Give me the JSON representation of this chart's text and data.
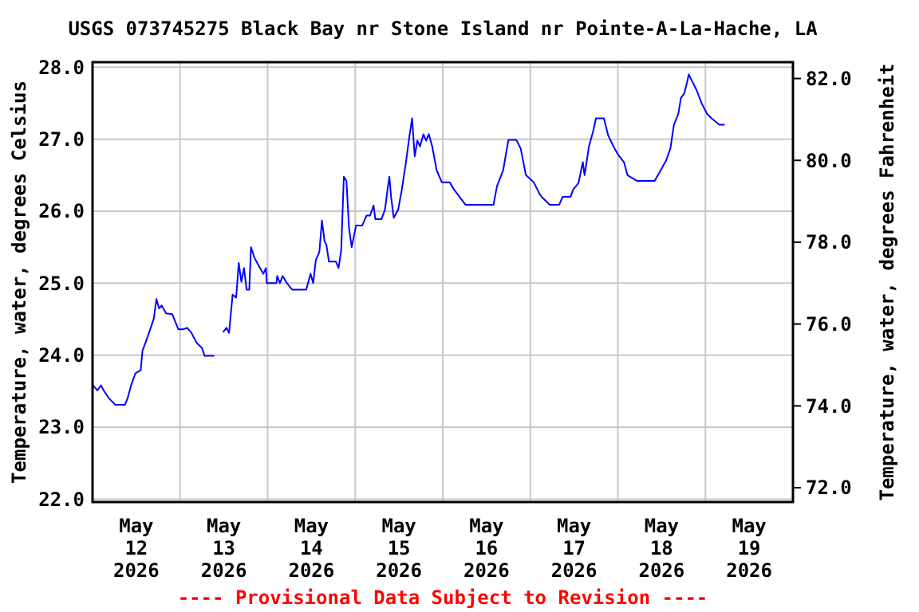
{
  "chart_data": {
    "type": "line",
    "title": "USGS 073745275 Black Bay nr Stone Island nr Pointe-A-La-Hache, LA",
    "ylabel": "Temperature, water, degrees Celsius",
    "y2label": "Temperature, water, degrees Fahrenheit",
    "annotations": [
      "---- Provisional Data Subject to Revision ----"
    ],
    "x": [
      "2026-05-12T00:07",
      "2026-05-12T01:19",
      "2026-05-12T02:20",
      "2026-05-12T03:03",
      "2026-05-12T04:31",
      "2026-05-12T06:14",
      "2026-05-12T08:53",
      "2026-05-12T09:36",
      "2026-05-12T10:34",
      "2026-05-12T11:46",
      "2026-05-12T13:12",
      "2026-05-12T13:41",
      "2026-05-12T14:38",
      "2026-05-12T16:05",
      "2026-05-12T16:48",
      "2026-05-12T17:31",
      "2026-05-12T18:14",
      "2026-05-12T18:58",
      "2026-05-12T20:10",
      "2026-05-12T21:50",
      "2026-05-12T23:31",
      "2026-05-13T00:58",
      "2026-05-13T01:55",
      "2026-05-13T03:07",
      "2026-05-13T04:34",
      "2026-05-13T06:00",
      "2026-05-13T06:43",
      "2026-05-13T09:22",
      "2026-05-13T10:48",
      "2026-05-13T11:46",
      "2026-05-13T12:43",
      "2026-05-13T13:26",
      "2026-05-13T13:55",
      "2026-05-13T14:24",
      "2026-05-13T15:22",
      "2026-05-13T16:05",
      "2026-05-13T16:48",
      "2026-05-13T17:31",
      "2026-05-13T18:14",
      "2026-05-13T18:58",
      "2026-05-13T19:26",
      "2026-05-13T20:24",
      "2026-05-13T21:36",
      "2026-05-13T22:48",
      "2026-05-13T23:31",
      "2026-05-13T23:46",
      "2026-05-14T02:24",
      "2026-05-14T02:38",
      "2026-05-14T03:22",
      "2026-05-14T04:05",
      "2026-05-14T05:17",
      "2026-05-14T06:43",
      "2026-05-14T10:34",
      "2026-05-14T11:46",
      "2026-05-14T12:29",
      "2026-05-14T13:12",
      "2026-05-14T14:10",
      "2026-05-14T14:53",
      "2026-05-14T15:36",
      "2026-05-14T16:05",
      "2026-05-14T16:48",
      "2026-05-14T18:43",
      "2026-05-14T19:26",
      "2026-05-14T20:10",
      "2026-05-14T20:53",
      "2026-05-14T21:36",
      "2026-05-14T22:19",
      "2026-05-14T23:02",
      "2026-05-15T00:14",
      "2026-05-15T01:55",
      "2026-05-15T03:07",
      "2026-05-15T04:05",
      "2026-05-15T05:02",
      "2026-05-15T05:31",
      "2026-05-15T07:12",
      "2026-05-15T08:10",
      "2026-05-15T08:53",
      "2026-05-15T09:22",
      "2026-05-15T09:50",
      "2026-05-15T10:34",
      "2026-05-15T11:46",
      "2026-05-15T12:43",
      "2026-05-15T13:55",
      "2026-05-15T14:53",
      "2026-05-15T15:36",
      "2026-05-15T16:19",
      "2026-05-15T17:02",
      "2026-05-15T17:46",
      "2026-05-15T18:43",
      "2026-05-15T19:26",
      "2026-05-15T20:10",
      "2026-05-15T21:07",
      "2026-05-15T22:19",
      "2026-05-15T23:46",
      "2026-05-16T01:55",
      "2026-05-16T03:07",
      "2026-05-16T04:34",
      "2026-05-16T06:14",
      "2026-05-16T13:55",
      "2026-05-16T14:53",
      "2026-05-16T16:34",
      "2026-05-16T18:00",
      "2026-05-16T20:10",
      "2026-05-16T21:22",
      "2026-05-16T22:48",
      "2026-05-17T00:58",
      "2026-05-17T02:38",
      "2026-05-17T03:07",
      "2026-05-17T05:17",
      "2026-05-17T07:55",
      "2026-05-17T08:53",
      "2026-05-17T11:02",
      "2026-05-17T11:46",
      "2026-05-17T13:12",
      "2026-05-17T14:24",
      "2026-05-17T14:53",
      "2026-05-17T16:05",
      "2026-05-17T17:17",
      "2026-05-17T18:00",
      "2026-05-17T20:10",
      "2026-05-17T21:22",
      "2026-05-17T22:48",
      "2026-05-18T00:00",
      "2026-05-18T01:41",
      "2026-05-18T02:38",
      "2026-05-18T05:17",
      "2026-05-18T10:05",
      "2026-05-18T11:46",
      "2026-05-18T13:12",
      "2026-05-18T14:24",
      "2026-05-18T15:22",
      "2026-05-18T16:34",
      "2026-05-18T17:17",
      "2026-05-18T18:14",
      "2026-05-18T18:58",
      "2026-05-18T19:26",
      "2026-05-18T20:24",
      "2026-05-18T21:36",
      "2026-05-18T23:02",
      "2026-05-19T00:29",
      "2026-05-19T01:41",
      "2026-05-19T03:50",
      "2026-05-19T05:17"
    ],
    "series": [
      {
        "color": "#0000ff",
        "values": [
          23.58,
          23.51,
          23.58,
          23.51,
          23.4,
          23.31,
          23.31,
          23.4,
          23.58,
          23.75,
          23.79,
          24.06,
          24.19,
          24.4,
          24.51,
          24.78,
          24.65,
          24.69,
          24.58,
          24.57,
          24.36,
          24.36,
          24.38,
          24.31,
          24.17,
          24.1,
          23.99,
          23.99,
          null,
          24.32,
          24.38,
          24.31,
          24.58,
          24.84,
          24.8,
          25.28,
          25.02,
          25.21,
          24.91,
          24.91,
          25.5,
          25.35,
          25.24,
          25.13,
          25.21,
          25.0,
          25.0,
          25.1,
          25.0,
          25.1,
          25.0,
          24.91,
          24.91,
          25.13,
          25.0,
          25.32,
          25.43,
          25.87,
          25.58,
          25.54,
          25.3,
          25.3,
          25.21,
          25.46,
          26.48,
          26.42,
          25.76,
          25.5,
          25.8,
          25.8,
          25.94,
          25.94,
          26.08,
          25.89,
          25.89,
          26.02,
          26.31,
          26.48,
          26.2,
          25.91,
          26.02,
          26.28,
          26.68,
          27.05,
          27.29,
          26.76,
          26.98,
          26.9,
          27.07,
          26.98,
          27.07,
          26.9,
          26.57,
          26.4,
          26.4,
          26.3,
          26.2,
          26.09,
          26.09,
          26.35,
          26.57,
          26.99,
          26.99,
          26.87,
          26.5,
          26.4,
          26.23,
          26.2,
          26.09,
          26.09,
          26.2,
          26.2,
          26.3,
          26.39,
          26.68,
          26.5,
          26.9,
          27.12,
          27.29,
          27.29,
          27.05,
          26.9,
          26.79,
          26.68,
          26.5,
          26.42,
          26.42,
          26.57,
          26.7,
          26.87,
          27.2,
          27.35,
          27.57,
          27.64,
          27.79,
          27.9,
          27.8,
          27.68,
          27.49,
          27.35,
          27.29,
          27.2,
          27.2
        ]
      }
    ],
    "xlim": [
      "2026-05-12T00:00",
      "2026-05-20T00:00"
    ],
    "xticks": [
      {
        "value": "2026-05-12T00:00",
        "label": null
      },
      {
        "value": "2026-05-12T12:00",
        "label": "May\n12\n2026"
      },
      {
        "value": "2026-05-13T00:00",
        "label": null
      },
      {
        "value": "2026-05-13T12:00",
        "label": "May\n13\n2026"
      },
      {
        "value": "2026-05-14T00:00",
        "label": null
      },
      {
        "value": "2026-05-14T12:00",
        "label": "May\n14\n2026"
      },
      {
        "value": "2026-05-15T00:00",
        "label": null
      },
      {
        "value": "2026-05-15T12:00",
        "label": "May\n15\n2026"
      },
      {
        "value": "2026-05-16T00:00",
        "label": null
      },
      {
        "value": "2026-05-16T12:00",
        "label": "May\n16\n2026"
      },
      {
        "value": "2026-05-17T00:00",
        "label": null
      },
      {
        "value": "2026-05-17T12:00",
        "label": "May\n17\n2026"
      },
      {
        "value": "2026-05-18T00:00",
        "label": null
      },
      {
        "value": "2026-05-18T12:00",
        "label": "May\n18\n2026"
      },
      {
        "value": "2026-05-19T00:00",
        "label": null
      },
      {
        "value": "2026-05-19T12:00",
        "label": "May\n19\n2026"
      },
      {
        "value": "2026-05-20T00:00",
        "label": null
      }
    ],
    "ylim": [
      21.96,
      28.07
    ],
    "yticks": [
      {
        "value": 22,
        "label": "22.0"
      },
      {
        "value": 23,
        "label": "23.0"
      },
      {
        "value": 24,
        "label": "24.0"
      },
      {
        "value": 25,
        "label": "25.0"
      },
      {
        "value": 26,
        "label": "26.0"
      },
      {
        "value": 27,
        "label": "27.0"
      },
      {
        "value": 28,
        "label": "28.0"
      }
    ],
    "y2lim": [
      71.65,
      82.4
    ],
    "y2ticks": [
      {
        "value": 72,
        "label": "72.0"
      },
      {
        "value": 74,
        "label": "74.0"
      },
      {
        "value": 76,
        "label": "76.0"
      },
      {
        "value": 78,
        "label": "78.0"
      },
      {
        "value": 80,
        "label": "80.0"
      },
      {
        "value": 82,
        "label": "82.0"
      }
    ],
    "grid": true,
    "line_style": "solid",
    "marker": "none"
  }
}
